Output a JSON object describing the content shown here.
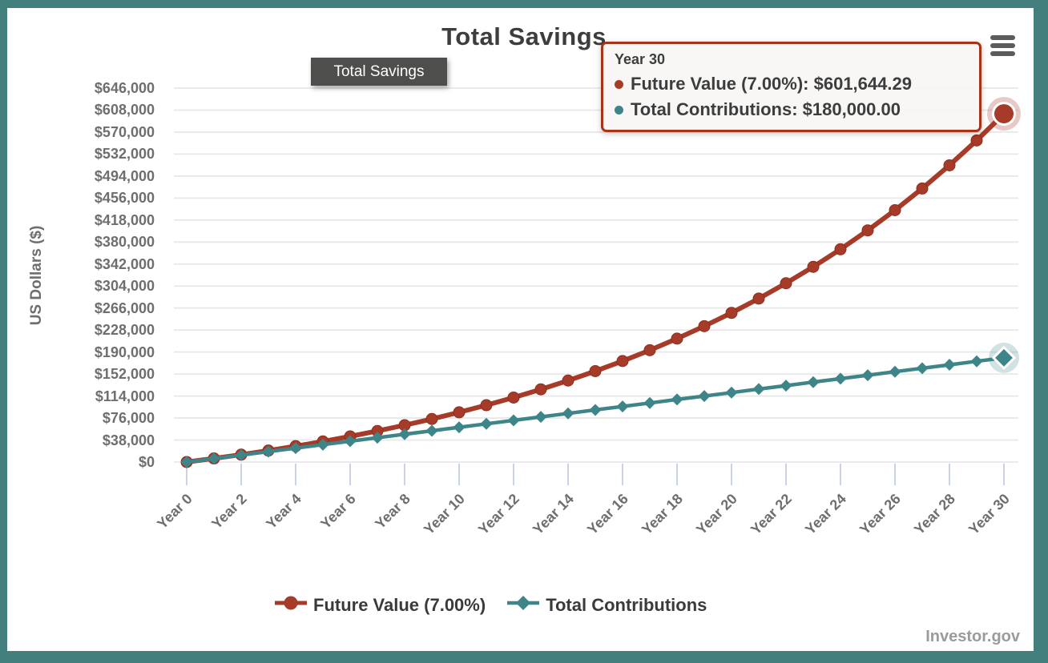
{
  "window": {
    "watermark": "Investor.gov",
    "border_color": "#43807d"
  },
  "title": "Total Savings",
  "title_tooltip": "Total Savings",
  "icons": {
    "menu": "hamburger-menu-icon"
  },
  "hover_tooltip": {
    "title": "Year 30",
    "rows": [
      {
        "text": "Future Value (7.00%): $601,644.29",
        "bullet_color": "#a53b28"
      },
      {
        "text": "Total Contributions: $180,000.00",
        "bullet_color": "#3e8589"
      }
    ]
  },
  "legend": {
    "items": [
      {
        "label": "Future Value (7.00%)",
        "color": "#a53b28",
        "shape": "circle"
      },
      {
        "label": "Total Contributions",
        "color": "#3e8589",
        "shape": "diamond"
      }
    ]
  },
  "chart_data": {
    "type": "line",
    "title": "Total Savings",
    "xlabel": "",
    "ylabel": "US Dollars ($)",
    "x": [
      0,
      1,
      2,
      3,
      4,
      5,
      6,
      7,
      8,
      9,
      10,
      11,
      12,
      13,
      14,
      15,
      16,
      17,
      18,
      19,
      20,
      21,
      22,
      23,
      24,
      25,
      26,
      27,
      28,
      29,
      30
    ],
    "x_tick_labels": [
      "Year 0",
      "Year 2",
      "Year 4",
      "Year 6",
      "Year 8",
      "Year 10",
      "Year 12",
      "Year 14",
      "Year 16",
      "Year 18",
      "Year 20",
      "Year 22",
      "Year 24",
      "Year 26",
      "Year 28",
      "Year 30"
    ],
    "x_tick_years": [
      0,
      2,
      4,
      6,
      8,
      10,
      12,
      14,
      16,
      18,
      20,
      22,
      24,
      26,
      28,
      30
    ],
    "y_ticks": [
      0,
      38000,
      76000,
      114000,
      152000,
      190000,
      228000,
      266000,
      304000,
      342000,
      380000,
      418000,
      456000,
      494000,
      532000,
      570000,
      608000,
      646000
    ],
    "y_tick_labels": [
      "$0",
      "$38,000",
      "$76,000",
      "$114,000",
      "$152,000",
      "$190,000",
      "$228,000",
      "$266,000",
      "$304,000",
      "$342,000",
      "$380,000",
      "$418,000",
      "$456,000",
      "$494,000",
      "$532,000",
      "$570,000",
      "$608,000",
      "$646,000"
    ],
    "ylim": [
      0,
      646000
    ],
    "grid": "horizontal",
    "legend_position": "bottom",
    "series": [
      {
        "name": "Future Value (7.00%)",
        "color": "#a53b28",
        "marker": "circle",
        "values": [
          0,
          6159,
          12761,
          19838,
          27423,
          35553,
          44267,
          53608,
          63619,
          74351,
          85853,
          98182,
          111398,
          125562,
          140745,
          157019,
          174462,
          193158,
          213199,
          234679,
          257703,
          282381,
          308833,
          337185,
          367575,
          400149,
          435063,
          472486,
          512598,
          555593,
          601644.29
        ]
      },
      {
        "name": "Total Contributions",
        "color": "#3e8589",
        "marker": "diamond",
        "values": [
          0,
          6000,
          12000,
          18000,
          24000,
          30000,
          36000,
          42000,
          48000,
          54000,
          60000,
          66000,
          72000,
          78000,
          84000,
          90000,
          96000,
          102000,
          108000,
          114000,
          120000,
          126000,
          132000,
          138000,
          144000,
          150000,
          156000,
          162000,
          168000,
          174000,
          180000
        ]
      }
    ],
    "highlighted_point": {
      "x_label": "Year 30",
      "values": [
        601644.29,
        180000
      ]
    }
  }
}
